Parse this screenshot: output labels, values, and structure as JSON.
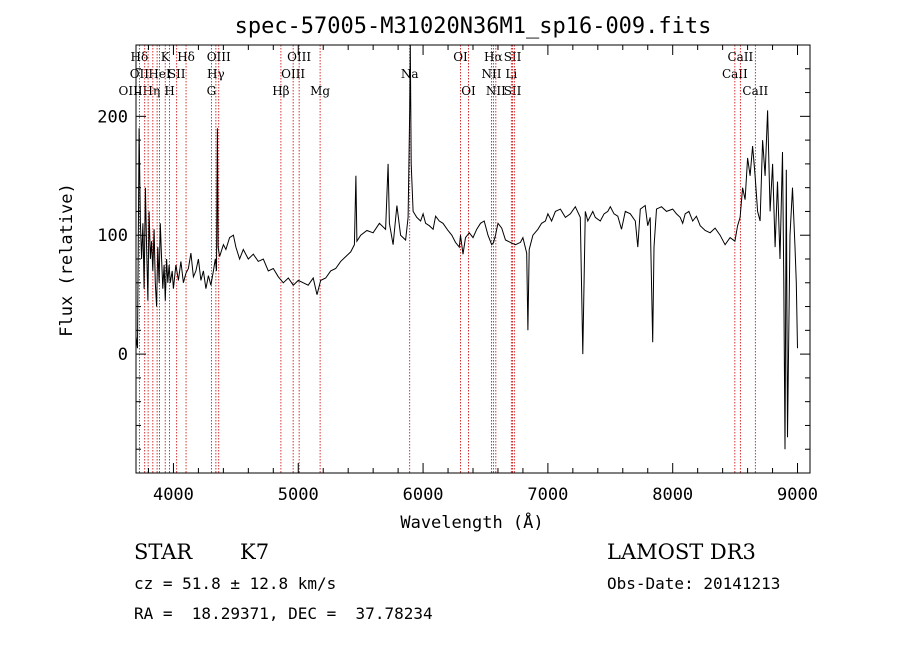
{
  "colors": {
    "axis": "#000000",
    "spectrum": "#000000",
    "lines": "#cc0000"
  },
  "info": {
    "class_label": "STAR",
    "subclass": "K7",
    "survey": "LAMOST DR3",
    "cz": "cz = 51.8 ± 12.8 km/s",
    "obs_date": "Obs-Date: 20141213",
    "radec": "RA =  18.29371, DEC =  37.78234"
  },
  "chart_data": {
    "type": "line",
    "title": "spec-57005-M31020N36M1_sp16-009.fits",
    "xlabel": "Wavelength (Å)",
    "ylabel": "Flux (relative)",
    "xlim": [
      3700,
      9100
    ],
    "ylim": [
      -100,
      260
    ],
    "x_ticks": [
      4000,
      5000,
      6000,
      7000,
      8000,
      9000
    ],
    "y_ticks": [
      0,
      100,
      200
    ],
    "grid": false,
    "line_markers": [
      {
        "wl": 3727,
        "labels": [
          "Hδ",
          "OII",
          "OIIIHη"
        ]
      },
      {
        "wl": 3770,
        "labels": [
          "",
          "",
          ""
        ]
      },
      {
        "wl": 3797,
        "labels": [
          "",
          "",
          ""
        ]
      },
      {
        "wl": 3835,
        "labels": [
          "",
          "",
          ""
        ]
      },
      {
        "wl": 3869,
        "labels": [
          "",
          "",
          ""
        ]
      },
      {
        "wl": 3889,
        "labels": [
          "",
          "HeI",
          ""
        ]
      },
      {
        "wl": 3934,
        "labels": [
          "K",
          "",
          ""
        ]
      },
      {
        "wl": 3969,
        "labels": [
          "",
          "",
          "H"
        ]
      },
      {
        "wl": 4026,
        "labels": [
          "",
          "SII",
          ""
        ]
      },
      {
        "wl": 4101,
        "labels": [
          "Hδ",
          "",
          ""
        ]
      },
      {
        "wl": 4304,
        "labels": [
          "",
          "",
          "G"
        ]
      },
      {
        "wl": 4340,
        "labels": [
          "",
          "Hγ",
          ""
        ]
      },
      {
        "wl": 4363,
        "labels": [
          "OIII",
          "",
          ""
        ]
      },
      {
        "wl": 4861,
        "labels": [
          "",
          "",
          "Hβ"
        ]
      },
      {
        "wl": 4959,
        "labels": [
          "",
          "OIII",
          ""
        ]
      },
      {
        "wl": 5007,
        "labels": [
          "OIII",
          "",
          ""
        ]
      },
      {
        "wl": 5175,
        "labels": [
          "",
          "",
          "Mg"
        ]
      },
      {
        "wl": 5893,
        "labels": [
          "",
          "Na",
          ""
        ]
      },
      {
        "wl": 6300,
        "labels": [
          "OI",
          "",
          ""
        ]
      },
      {
        "wl": 6364,
        "labels": [
          "",
          "",
          "OI"
        ]
      },
      {
        "wl": 6548,
        "labels": [
          "",
          "NII",
          ""
        ]
      },
      {
        "wl": 6563,
        "labels": [
          "Hα",
          "",
          ""
        ]
      },
      {
        "wl": 6583,
        "labels": [
          "",
          "",
          "NII"
        ]
      },
      {
        "wl": 6707,
        "labels": [
          "",
          "Li",
          ""
        ]
      },
      {
        "wl": 6717,
        "labels": [
          "SII",
          "",
          "SII"
        ]
      },
      {
        "wl": 6731,
        "labels": [
          "",
          "",
          ""
        ]
      },
      {
        "wl": 8498,
        "labels": [
          "",
          "CaII",
          ""
        ]
      },
      {
        "wl": 8542,
        "labels": [
          "CaII",
          "",
          ""
        ]
      },
      {
        "wl": 8662,
        "labels": [
          "",
          "",
          "CaII"
        ]
      }
    ],
    "series": [
      {
        "name": "flux",
        "points": [
          [
            3700,
            15
          ],
          [
            3712,
            5
          ],
          [
            3725,
            190
          ],
          [
            3735,
            110
          ],
          [
            3745,
            80
          ],
          [
            3755,
            110
          ],
          [
            3765,
            55
          ],
          [
            3775,
            140
          ],
          [
            3785,
            90
          ],
          [
            3795,
            45
          ],
          [
            3805,
            120
          ],
          [
            3815,
            80
          ],
          [
            3825,
            95
          ],
          [
            3835,
            70
          ],
          [
            3845,
            105
          ],
          [
            3855,
            60
          ],
          [
            3865,
            40
          ],
          [
            3875,
            90
          ],
          [
            3885,
            60
          ],
          [
            3895,
            110
          ],
          [
            3905,
            80
          ],
          [
            3915,
            55
          ],
          [
            3925,
            75
          ],
          [
            3935,
            45
          ],
          [
            3945,
            80
          ],
          [
            3955,
            60
          ],
          [
            3965,
            75
          ],
          [
            3975,
            60
          ],
          [
            3990,
            70
          ],
          [
            4000,
            55
          ],
          [
            4020,
            75
          ],
          [
            4040,
            62
          ],
          [
            4060,
            78
          ],
          [
            4080,
            60
          ],
          [
            4100,
            68
          ],
          [
            4120,
            72
          ],
          [
            4140,
            85
          ],
          [
            4160,
            65
          ],
          [
            4180,
            70
          ],
          [
            4200,
            80
          ],
          [
            4220,
            62
          ],
          [
            4240,
            70
          ],
          [
            4260,
            55
          ],
          [
            4280,
            66
          ],
          [
            4300,
            58
          ],
          [
            4320,
            70
          ],
          [
            4335,
            80
          ],
          [
            4345,
            70
          ],
          [
            4352,
            190
          ],
          [
            4358,
            90
          ],
          [
            4370,
            82
          ],
          [
            4400,
            92
          ],
          [
            4420,
            88
          ],
          [
            4450,
            98
          ],
          [
            4480,
            100
          ],
          [
            4500,
            90
          ],
          [
            4530,
            80
          ],
          [
            4560,
            88
          ],
          [
            4600,
            80
          ],
          [
            4640,
            84
          ],
          [
            4680,
            78
          ],
          [
            4720,
            80
          ],
          [
            4760,
            70
          ],
          [
            4800,
            72
          ],
          [
            4840,
            65
          ],
          [
            4880,
            60
          ],
          [
            4920,
            64
          ],
          [
            4960,
            58
          ],
          [
            5000,
            62
          ],
          [
            5040,
            60
          ],
          [
            5080,
            58
          ],
          [
            5120,
            64
          ],
          [
            5150,
            50
          ],
          [
            5180,
            62
          ],
          [
            5220,
            64
          ],
          [
            5260,
            70
          ],
          [
            5300,
            72
          ],
          [
            5340,
            78
          ],
          [
            5380,
            82
          ],
          [
            5420,
            86
          ],
          [
            5450,
            92
          ],
          [
            5462,
            150
          ],
          [
            5470,
            95
          ],
          [
            5500,
            100
          ],
          [
            5550,
            104
          ],
          [
            5600,
            102
          ],
          [
            5650,
            110
          ],
          [
            5700,
            105
          ],
          [
            5720,
            160
          ],
          [
            5730,
            110
          ],
          [
            5760,
            92
          ],
          [
            5790,
            125
          ],
          [
            5820,
            100
          ],
          [
            5860,
            96
          ],
          [
            5880,
            115
          ],
          [
            5893,
            205
          ],
          [
            5898,
            262
          ],
          [
            5905,
            160
          ],
          [
            5920,
            120
          ],
          [
            5950,
            115
          ],
          [
            5980,
            112
          ],
          [
            6000,
            118
          ],
          [
            6020,
            110
          ],
          [
            6050,
            108
          ],
          [
            6080,
            105
          ],
          [
            6100,
            116
          ],
          [
            6130,
            112
          ],
          [
            6160,
            110
          ],
          [
            6200,
            104
          ],
          [
            6230,
            100
          ],
          [
            6260,
            94
          ],
          [
            6290,
            90
          ],
          [
            6300,
            100
          ],
          [
            6320,
            84
          ],
          [
            6340,
            98
          ],
          [
            6370,
            102
          ],
          [
            6400,
            98
          ],
          [
            6430,
            105
          ],
          [
            6460,
            110
          ],
          [
            6490,
            112
          ],
          [
            6520,
            100
          ],
          [
            6550,
            92
          ],
          [
            6565,
            94
          ],
          [
            6580,
            100
          ],
          [
            6600,
            110
          ],
          [
            6630,
            106
          ],
          [
            6660,
            96
          ],
          [
            6700,
            94
          ],
          [
            6740,
            92
          ],
          [
            6780,
            94
          ],
          [
            6800,
            98
          ],
          [
            6830,
            85
          ],
          [
            6840,
            20
          ],
          [
            6850,
            88
          ],
          [
            6880,
            100
          ],
          [
            6920,
            105
          ],
          [
            6950,
            110
          ],
          [
            6980,
            112
          ],
          [
            7000,
            118
          ],
          [
            7030,
            112
          ],
          [
            7060,
            120
          ],
          [
            7100,
            122
          ],
          [
            7140,
            115
          ],
          [
            7180,
            118
          ],
          [
            7220,
            124
          ],
          [
            7260,
            115
          ],
          [
            7280,
            0
          ],
          [
            7300,
            120
          ],
          [
            7320,
            112
          ],
          [
            7360,
            120
          ],
          [
            7380,
            115
          ],
          [
            7420,
            112
          ],
          [
            7450,
            118
          ],
          [
            7480,
            120
          ],
          [
            7500,
            124
          ],
          [
            7530,
            118
          ],
          [
            7560,
            116
          ],
          [
            7590,
            105
          ],
          [
            7620,
            120
          ],
          [
            7660,
            118
          ],
          [
            7700,
            112
          ],
          [
            7720,
            90
          ],
          [
            7740,
            122
          ],
          [
            7780,
            125
          ],
          [
            7800,
            108
          ],
          [
            7820,
            115
          ],
          [
            7840,
            10
          ],
          [
            7850,
            90
          ],
          [
            7870,
            122
          ],
          [
            7910,
            124
          ],
          [
            7950,
            120
          ],
          [
            8000,
            122
          ],
          [
            8030,
            118
          ],
          [
            8060,
            115
          ],
          [
            8080,
            110
          ],
          [
            8100,
            118
          ],
          [
            8130,
            120
          ],
          [
            8160,
            112
          ],
          [
            8190,
            116
          ],
          [
            8220,
            108
          ],
          [
            8260,
            104
          ],
          [
            8300,
            102
          ],
          [
            8340,
            106
          ],
          [
            8380,
            100
          ],
          [
            8420,
            92
          ],
          [
            8460,
            98
          ],
          [
            8498,
            95
          ],
          [
            8520,
            108
          ],
          [
            8540,
            115
          ],
          [
            8560,
            140
          ],
          [
            8580,
            130
          ],
          [
            8600,
            165
          ],
          [
            8620,
            150
          ],
          [
            8640,
            175
          ],
          [
            8660,
            150
          ],
          [
            8680,
            120
          ],
          [
            8700,
            112
          ],
          [
            8720,
            180
          ],
          [
            8740,
            150
          ],
          [
            8760,
            205
          ],
          [
            8780,
            120
          ],
          [
            8800,
            160
          ],
          [
            8820,
            90
          ],
          [
            8840,
            145
          ],
          [
            8860,
            80
          ],
          [
            8880,
            170
          ],
          [
            8890,
            60
          ],
          [
            8900,
            -80
          ],
          [
            8910,
            155
          ],
          [
            8920,
            -70
          ],
          [
            8940,
            100
          ],
          [
            8960,
            140
          ],
          [
            8980,
            90
          ],
          [
            8990,
            60
          ],
          [
            9000,
            5
          ]
        ]
      }
    ]
  }
}
